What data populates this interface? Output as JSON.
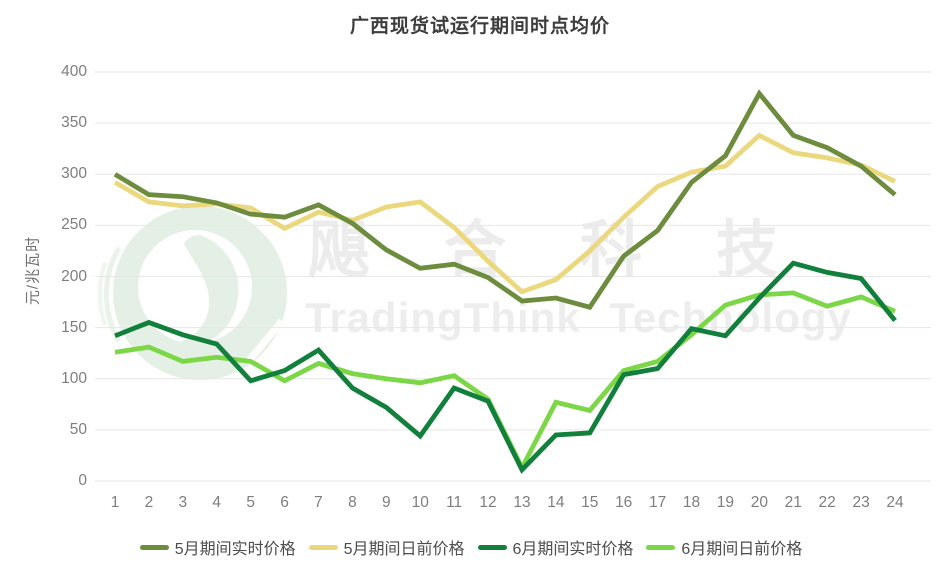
{
  "title": "广西现货试运行期间时点均价",
  "y_axis": {
    "label": "元/兆瓦时",
    "ticks": [
      0,
      50,
      100,
      150,
      200,
      250,
      300,
      350,
      400
    ]
  },
  "x_axis": {
    "ticks": [
      1,
      2,
      3,
      4,
      5,
      6,
      7,
      8,
      9,
      10,
      11,
      12,
      13,
      14,
      15,
      16,
      17,
      18,
      19,
      20,
      21,
      22,
      23,
      24
    ]
  },
  "chart_data": {
    "type": "line",
    "x": [
      1,
      2,
      3,
      4,
      5,
      6,
      7,
      8,
      9,
      10,
      11,
      12,
      13,
      14,
      15,
      16,
      17,
      18,
      19,
      20,
      21,
      22,
      23,
      24
    ],
    "series": [
      {
        "name": "5月期间实时价格",
        "color": "#6e8c3e",
        "values": [
          300,
          280,
          278,
          272,
          261,
          258,
          270,
          252,
          226,
          208,
          212,
          199,
          176,
          179,
          170,
          220,
          245,
          292,
          318,
          379,
          338,
          326,
          308,
          280
        ]
      },
      {
        "name": "5月期间日前价格",
        "color": "#ebd87e",
        "values": [
          292,
          273,
          269,
          271,
          267,
          247,
          263,
          255,
          268,
          273,
          248,
          215,
          185,
          197,
          225,
          258,
          288,
          302,
          308,
          338,
          321,
          316,
          309,
          293
        ]
      },
      {
        "name": "6月期间实时价格",
        "color": "#12803c",
        "values": [
          142,
          155,
          143,
          134,
          98,
          108,
          128,
          91,
          72,
          44,
          91,
          78,
          11,
          45,
          47,
          104,
          110,
          149,
          142,
          179,
          213,
          204,
          198,
          157
        ]
      },
      {
        "name": "6月期间日前价格",
        "color": "#7bd748",
        "values": [
          126,
          131,
          117,
          121,
          117,
          98,
          115,
          105,
          100,
          96,
          103,
          80,
          13,
          77,
          69,
          108,
          117,
          143,
          172,
          182,
          184,
          171,
          180,
          166
        ]
      }
    ],
    "ylim": [
      0,
      400
    ],
    "grid": true,
    "legend_position": "bottom"
  },
  "watermark": {
    "cn_chars": [
      "飓",
      "合",
      "科",
      "技"
    ],
    "en": "TradingThink Technology"
  },
  "colors": {
    "gridline": "#e7e7e7",
    "tick_text": "#7e7e7e",
    "title_text": "#3d3d3d",
    "legend_text": "#4d4d4d",
    "watermark_text": "#ececec",
    "watermark_logo": "#e4f0e5"
  }
}
